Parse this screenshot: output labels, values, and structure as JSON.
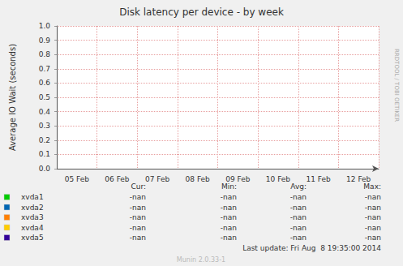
{
  "chart_data": {
    "type": "line",
    "title": "Disk latency per device - by week",
    "y_label": "Average IO Wait (seconds)",
    "categories": [
      "05 Feb",
      "06 Feb",
      "07 Feb",
      "08 Feb",
      "09 Feb",
      "10 Feb",
      "11 Feb",
      "12 Feb"
    ],
    "series": [
      {
        "name": "xvda1",
        "color": "#00CC00",
        "values": [
          null,
          null,
          null,
          null,
          null,
          null,
          null,
          null
        ],
        "cur": "-nan",
        "min": "-nan",
        "avg": "-nan",
        "max": "-nan"
      },
      {
        "name": "xvda2",
        "color": "#0066B3",
        "values": [
          null,
          null,
          null,
          null,
          null,
          null,
          null,
          null
        ],
        "cur": "-nan",
        "min": "-nan",
        "avg": "-nan",
        "max": "-nan"
      },
      {
        "name": "xvda3",
        "color": "#FF8000",
        "values": [
          null,
          null,
          null,
          null,
          null,
          null,
          null,
          null
        ],
        "cur": "-nan",
        "min": "-nan",
        "avg": "-nan",
        "max": "-nan"
      },
      {
        "name": "xvda4",
        "color": "#FFCC00",
        "values": [
          null,
          null,
          null,
          null,
          null,
          null,
          null,
          null
        ],
        "cur": "-nan",
        "min": "-nan",
        "avg": "-nan",
        "max": "-nan"
      },
      {
        "name": "xvda5",
        "color": "#330099",
        "values": [
          null,
          null,
          null,
          null,
          null,
          null,
          null,
          null
        ],
        "cur": "-nan",
        "min": "-nan",
        "avg": "-nan",
        "max": "-nan"
      }
    ],
    "ylim": [
      0,
      1
    ],
    "yticks": [
      {
        "value": 0,
        "label": "0.0"
      },
      0.1,
      0.2,
      0.3,
      0.4,
      0.5,
      0.6,
      0.7,
      0.8,
      0.9,
      {
        "value": 1,
        "label": "1.0"
      }
    ],
    "grid": true,
    "legend_columns": [
      "Cur:",
      "Min:",
      "Avg:",
      "Max:"
    ],
    "last_update": "Last update: Fri Aug  8 19:35:00 2014",
    "footer": "Munin 2.0.33-1",
    "side_text": "RRDTOOL / TOBI OETIKER"
  }
}
